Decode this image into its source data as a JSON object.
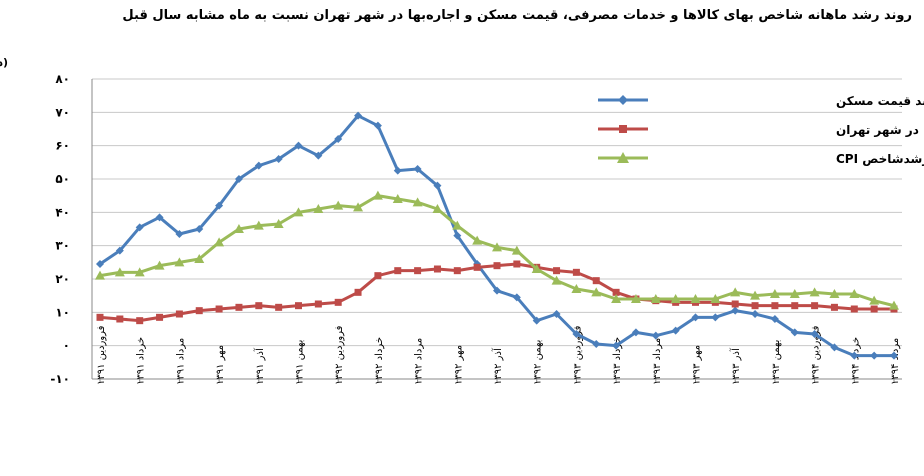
{
  "chart_data": {
    "type": "line",
    "title": "روند رشد ماهانه شاخص بهای کالاها و خدمات مصرفی، قیمت مسکن و اجاره‌بها در شهر تهران نسبت به ماه مشابه سال قبل",
    "ylabel": "(درصد)",
    "ylim": [
      -10,
      80
    ],
    "yticks": [
      "۸۰",
      "۷۰",
      "۶۰",
      "۵۰",
      "۴۰",
      "۳۰",
      "۲۰",
      "۱۰",
      "۰",
      "-۱۰"
    ],
    "ytick_values": [
      80,
      70,
      60,
      50,
      40,
      30,
      20,
      10,
      0,
      -10
    ],
    "xtick_labels": [
      "فروردین ۱۳۹۱",
      "خرداد ۱۳۹۱",
      "مرداد ۱۳۹۱",
      "مهر ۱۳۹۱",
      "آذر ۱۳۹۱",
      "بهمن ۱۳۹۱",
      "فروردین ۱۳۹۲",
      "خرداد ۱۳۹۲",
      "مرداد ۱۳۹۲",
      "مهر ۱۳۹۲",
      "آذر ۱۳۹۲",
      "بهمن ۱۳۹۲",
      "فروردین ۱۳۹۳",
      "خرداد ۱۳۹۳",
      "مرداد ۱۳۹۳",
      "مهر ۱۳۹۳",
      "آذر ۱۳۹۳",
      "بهمن ۱۳۹۳",
      "فروردین ۱۳۹۴",
      "خرداد ۱۳۹۴",
      "مرداد ۱۳۹۴"
    ],
    "grid": true,
    "legend_position": "top-right",
    "series": [
      {
        "name": "نرخ رشد قیمت مسکن",
        "color": "#4a7ebb",
        "marker": "diamond",
        "values": [
          24.5,
          28.5,
          35.5,
          38.5,
          33.5,
          35,
          42,
          50,
          54,
          56,
          60,
          57,
          62,
          69,
          66,
          52.5,
          53,
          48,
          33,
          24.5,
          16.5,
          14.5,
          7.5,
          9.5,
          3.5,
          0.5,
          0,
          4,
          3,
          4.5,
          8.5,
          8.5,
          10.5,
          9.5,
          8,
          4,
          3.5,
          -0.5,
          -3,
          -3,
          -3
        ]
      },
      {
        "name": "نرخ رشد اجاره بها در شهر تهران",
        "color": "#be4b48",
        "marker": "square",
        "values": [
          8.5,
          8,
          7.5,
          8.5,
          9.5,
          10.5,
          11,
          11.5,
          12,
          11.5,
          12,
          12.5,
          13,
          16,
          21,
          22.5,
          22.5,
          23,
          22.5,
          23.5,
          24,
          24.5,
          23.5,
          22.5,
          22,
          19.5,
          16,
          14,
          13.5,
          13,
          13,
          13,
          12.5,
          12,
          12,
          12,
          12,
          11.5,
          11,
          11,
          11
        ]
      },
      {
        "name": "نرخ رشدشاخص CPI",
        "color": "#9bbb59",
        "marker": "triangle",
        "values": [
          21,
          22,
          22,
          24,
          25,
          26,
          31,
          35,
          36,
          36.5,
          40,
          41,
          42,
          41.5,
          45,
          44,
          43,
          41,
          36,
          31.5,
          29.5,
          28.5,
          23,
          19.5,
          17,
          16,
          14,
          14,
          14,
          14,
          14,
          14,
          16,
          15,
          15.5,
          15.5,
          16,
          15.5,
          15.5,
          13.5,
          12
        ]
      }
    ]
  }
}
